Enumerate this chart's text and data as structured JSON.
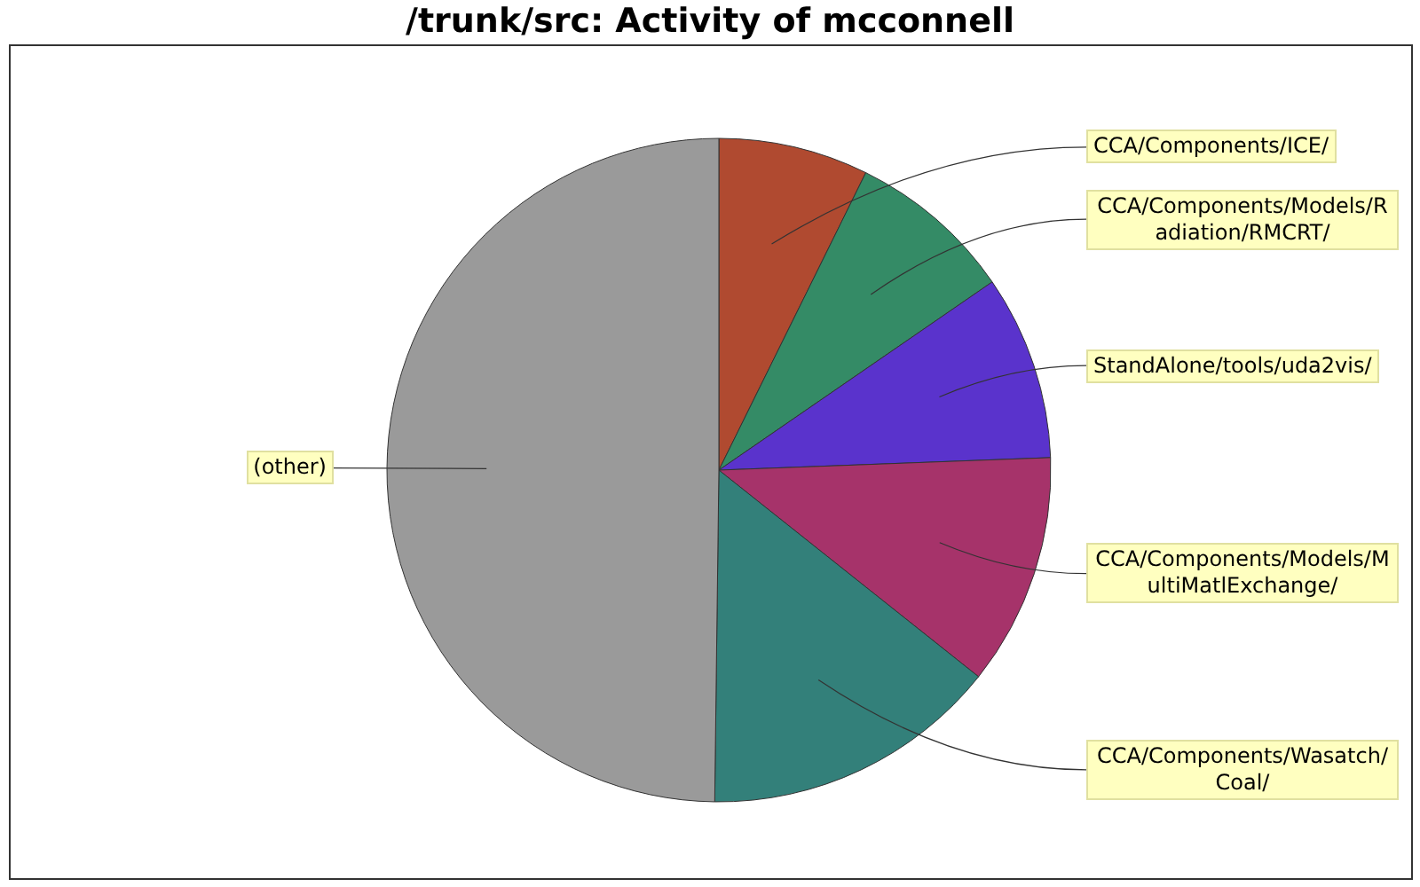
{
  "chart_data": {
    "type": "pie",
    "title": "/trunk/src: Activity of mcconnell",
    "categories": [
      "CCA/Components/ICE/",
      "CCA/Components/Models/Radiation/RMCRT/",
      "StandAlone/tools/uda2vis/",
      "CCA/Components/Models/MultiMatlExchange/",
      "CCA/Components/Wasatch/Coal/",
      "(other)"
    ],
    "values": [
      7.3,
      8.1,
      9.0,
      11.3,
      14.5,
      49.8
    ],
    "colors": [
      "#b04a30",
      "#348b66",
      "#5a33cc",
      "#a6336a",
      "#33807a",
      "#9a9a9a"
    ]
  }
}
